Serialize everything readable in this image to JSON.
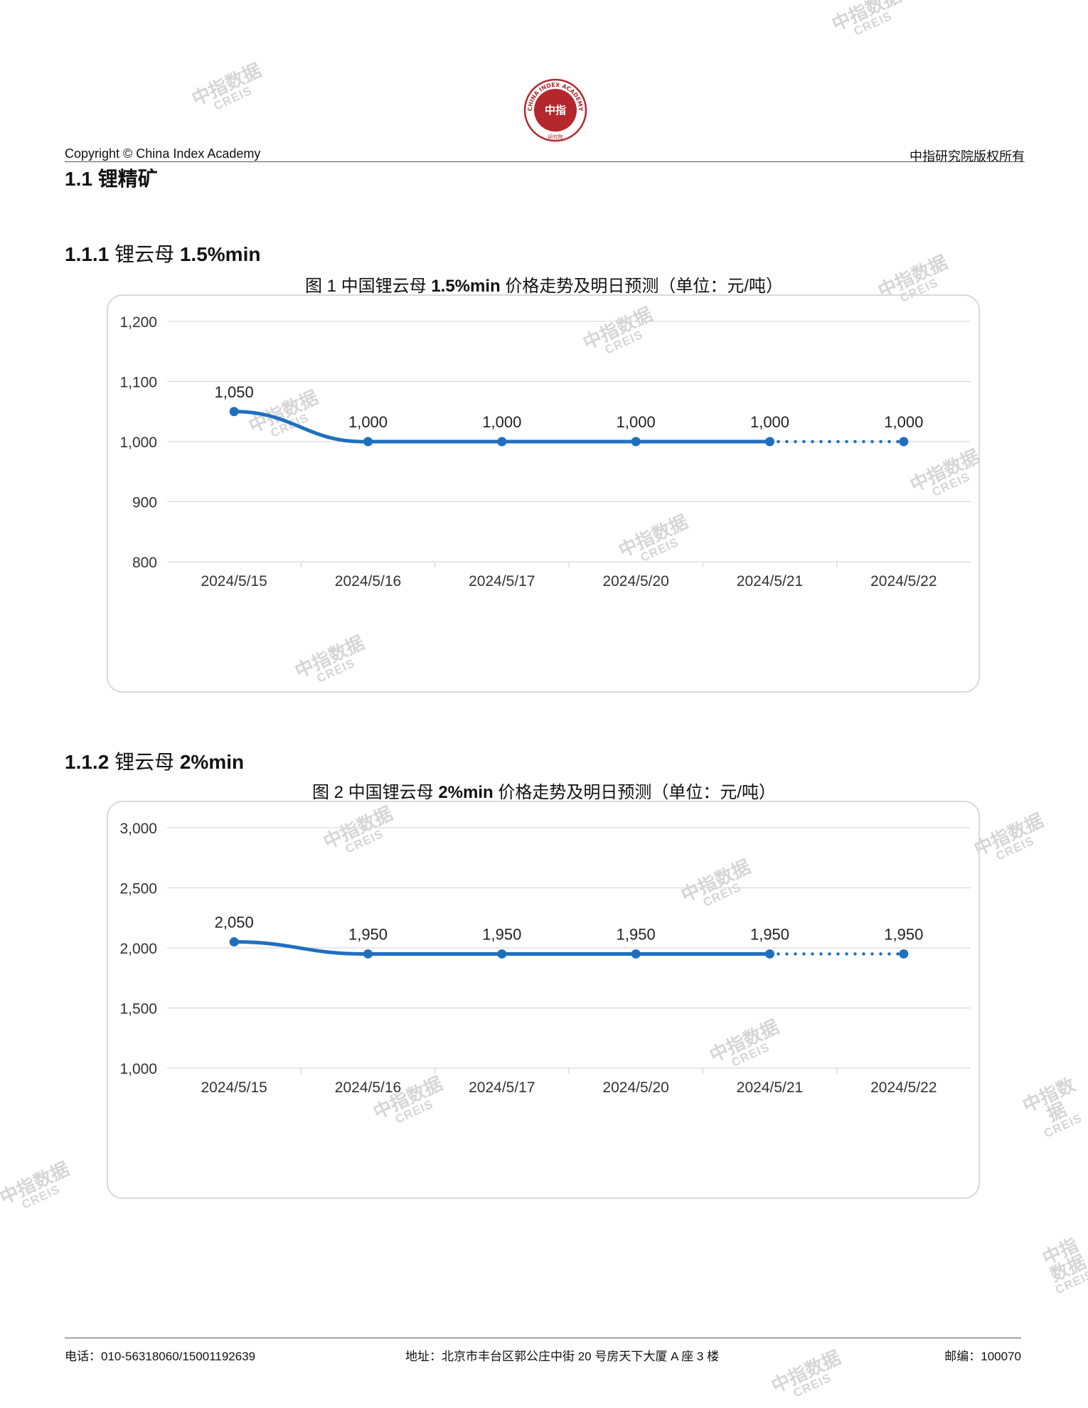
{
  "header": {
    "left": "Copyright © China Index Academy",
    "right": "中指研究院版权所有",
    "logo_center": "中指",
    "logo_ring": "CHINA INDEX ACADEMY",
    "logo_bottom": "研究院"
  },
  "section": {
    "title": "1.1 锂精矿"
  },
  "watermark": {
    "line1": "中指数据",
    "line2": "CREIS"
  },
  "subsections": [
    {
      "title_num": "1.1.1",
      "title_text": "锂云母",
      "title_spec": "1.5%min",
      "figure_title": {
        "num": "图 1",
        "mid": "中国锂云母",
        "spec": "1.5%min",
        "rest": "价格走势及明日预测（单位：元/吨）"
      }
    },
    {
      "title_num": "1.1.2",
      "title_text": "锂云母",
      "title_spec": "2%min",
      "figure_title": {
        "num": "图 2",
        "mid": "中国锂云母",
        "spec": "2%min",
        "rest": "价格走势及明日预测（单位：元/吨）"
      }
    }
  ],
  "chart_data": [
    {
      "type": "line",
      "categories": [
        "2024/5/15",
        "2024/5/16",
        "2024/5/17",
        "2024/5/20",
        "2024/5/21",
        "2024/5/22"
      ],
      "values": [
        1050,
        1000,
        1000,
        1000,
        1000,
        1000
      ],
      "data_labels": [
        "1,050",
        "1,000",
        "1,000",
        "1,000",
        "1,000",
        "1,000"
      ],
      "forecast_from_index": 4,
      "ylim": [
        800,
        1200
      ],
      "yticks": [
        800,
        900,
        1000,
        1100,
        1200
      ],
      "ytick_labels": [
        "800",
        "900",
        "1,000",
        "1,100",
        "1,200"
      ],
      "grid": true,
      "color": "#1f6fbf"
    },
    {
      "type": "line",
      "categories": [
        "2024/5/15",
        "2024/5/16",
        "2024/5/17",
        "2024/5/20",
        "2024/5/21",
        "2024/5/22"
      ],
      "values": [
        2050,
        1950,
        1950,
        1950,
        1950,
        1950
      ],
      "data_labels": [
        "2,050",
        "1,950",
        "1,950",
        "1,950",
        "1,950",
        "1,950"
      ],
      "forecast_from_index": 4,
      "ylim": [
        1000,
        3000
      ],
      "yticks": [
        1000,
        1500,
        2000,
        2500,
        3000
      ],
      "ytick_labels": [
        "1,000",
        "1,500",
        "2,000",
        "2,500",
        "3,000"
      ],
      "grid": true,
      "color": "#1f6fbf"
    }
  ],
  "footer": {
    "phone": "电话：010-56318060/15001192639",
    "address": "地址：北京市丰台区郭公庄中街 20 号房天下大厦 A 座 3 楼",
    "postcode": "邮编：100070"
  }
}
